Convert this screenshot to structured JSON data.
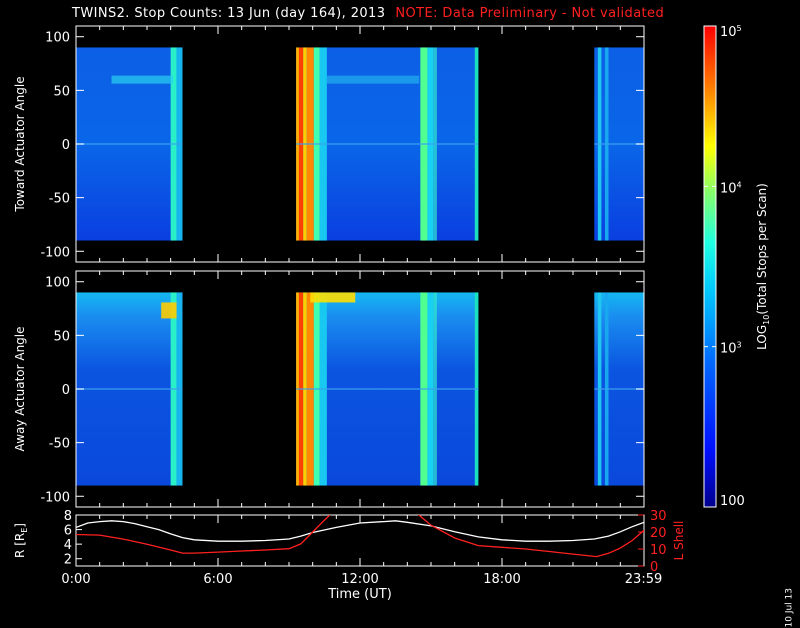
{
  "title": {
    "main": "TWINS2. Stop Counts: 13 Jun (day 164), 2013",
    "note": "NOTE: Data Preliminary - Not validated"
  },
  "chart_data": [
    {
      "type": "heatmap",
      "ylabel": "Toward Actuator Angle",
      "ylim": [
        -110,
        110
      ],
      "yticks": [
        100,
        50,
        0,
        -50,
        -100
      ],
      "data_range_y": [
        -90,
        90
      ],
      "x_domain_hours": [
        0,
        24
      ],
      "data_intervals_hours": [
        [
          0.0,
          4.5
        ],
        [
          9.3,
          17.0
        ],
        [
          21.9,
          24.0
        ]
      ]
    },
    {
      "type": "heatmap",
      "ylabel": "Away Actuator Angle",
      "ylim": [
        -110,
        110
      ],
      "yticks": [
        100,
        50,
        0,
        -50,
        -100
      ],
      "data_range_y": [
        -90,
        90
      ],
      "x_domain_hours": [
        0,
        24
      ],
      "data_intervals_hours": [
        [
          0.0,
          4.5
        ],
        [
          9.3,
          17.0
        ],
        [
          21.9,
          24.0
        ]
      ]
    },
    {
      "type": "line",
      "ylabel": "R [R",
      "ylabel_sub": "E",
      "ylabel_end": "]",
      "ylim": [
        1,
        8
      ],
      "yticks": [
        2,
        4,
        6,
        8
      ],
      "y2label": "L Shell",
      "y2lim": [
        0,
        30
      ],
      "y2ticks": [
        0,
        10,
        20,
        30
      ],
      "xlabel": "Time (UT)",
      "xticks": [
        "0:00",
        "6:00",
        "12:00",
        "18:00",
        "23:59"
      ],
      "xtick_hours": [
        0,
        6,
        12,
        18,
        23.98
      ],
      "series": [
        {
          "axis": "left",
          "color": "#ffffff",
          "x": [
            0,
            0.5,
            1,
            1.5,
            2,
            2.5,
            3,
            3.5,
            4,
            4.5,
            5,
            6,
            7,
            8,
            9,
            9.5,
            10,
            11,
            12,
            13,
            13.5,
            14,
            15,
            16,
            17,
            18,
            19,
            20,
            21,
            21.9,
            22.5,
            23,
            23.5,
            24
          ],
          "y": [
            6.3,
            6.9,
            7.1,
            7.2,
            7.1,
            6.8,
            6.4,
            6.0,
            5.4,
            4.9,
            4.6,
            4.4,
            4.4,
            4.5,
            4.7,
            5.1,
            5.6,
            6.3,
            6.9,
            7.1,
            7.2,
            7.0,
            6.5,
            5.7,
            5.0,
            4.6,
            4.4,
            4.4,
            4.5,
            4.7,
            5.1,
            5.7,
            6.4,
            7.0
          ]
        },
        {
          "axis": "right",
          "color": "#ff2020",
          "x": [
            0,
            1,
            2,
            3,
            4,
            4.5,
            5,
            6,
            7,
            8,
            9,
            9.5,
            10,
            10.5,
            10.8,
            14.4,
            15,
            16,
            17,
            18,
            19,
            20,
            21,
            22,
            22.5,
            23,
            23.5,
            24
          ],
          "y": [
            18.5,
            18.2,
            15.8,
            12.8,
            9.4,
            7.6,
            7.6,
            8.2,
            8.8,
            9.4,
            10.2,
            13.0,
            20.0,
            27.0,
            31.0,
            31.0,
            24.0,
            16.5,
            12.0,
            11.0,
            10.0,
            8.5,
            7.0,
            5.5,
            7.5,
            10.5,
            15.0,
            21.0
          ]
        }
      ]
    }
  ],
  "colorbar": {
    "label": "LOG",
    "label_sub": "10",
    "label_rest": "(Total Stops per Scan)",
    "ticks": [
      "10",
      "10",
      "10",
      "100"
    ],
    "tick_exps": [
      "5",
      "4",
      "3",
      ""
    ],
    "tick_values": [
      100000,
      10000,
      1000,
      100
    ],
    "range": [
      100,
      100000
    ],
    "scale": "log"
  },
  "footer": {
    "date_stamp": "10 Jul 13"
  },
  "colors": {
    "note": "#ff2020",
    "lshell": "#ff2020",
    "radius": "#ffffff"
  }
}
